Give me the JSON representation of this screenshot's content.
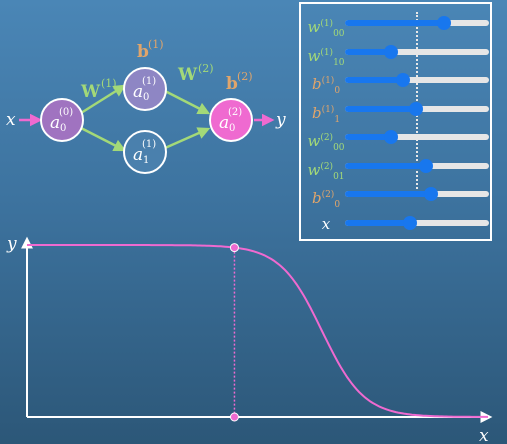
{
  "network": {
    "input_label": "x",
    "output_label": "y",
    "nodes": {
      "a0_0": {
        "base": "a",
        "sub": "0",
        "sup": "(0)"
      },
      "a0_1": {
        "base": "a",
        "sub": "0",
        "sup": "(1)"
      },
      "a1_1": {
        "base": "a",
        "sub": "1",
        "sup": "(1)"
      },
      "a0_2": {
        "base": "a",
        "sub": "0",
        "sup": "(2)"
      }
    },
    "labels": {
      "W1": {
        "base": "W",
        "sup": "(1)"
      },
      "W2": {
        "base": "W",
        "sup": "(2)"
      },
      "b1": {
        "base": "b",
        "sup": "(1)"
      },
      "b2": {
        "base": "b",
        "sup": "(2)"
      }
    },
    "colors": {
      "input_node": "#a073c0",
      "hidden_node_top": "#8e86c4",
      "hidden_node_bottom": "#4a80ad",
      "output_node": "#ef6ad0",
      "arrow_in_out": "#ef6ad0",
      "weight_arrows": "#a3d978",
      "weight_label": "#a3d978",
      "bias_label": "#e0a56b"
    }
  },
  "sliders": [
    {
      "base": "w",
      "sub": "00",
      "sup": "(1)",
      "color": "green",
      "value": 0.69
    },
    {
      "base": "w",
      "sub": "10",
      "sup": "(1)",
      "color": "green",
      "value": 0.32
    },
    {
      "base": "b",
      "sub": "0",
      "sup": "(1)",
      "color": "orange",
      "value": 0.4
    },
    {
      "base": "b",
      "sub": "1",
      "sup": "(1)",
      "color": "orange",
      "value": 0.49
    },
    {
      "base": "w",
      "sub": "00",
      "sup": "(2)",
      "color": "green",
      "value": 0.32
    },
    {
      "base": "w",
      "sub": "01",
      "sup": "(2)",
      "color": "green",
      "value": 0.56
    },
    {
      "base": "b",
      "sub": "0",
      "sup": "(2)",
      "color": "orange",
      "value": 0.6
    },
    {
      "base": "x",
      "sub": "",
      "sup": "",
      "color": "white",
      "value": 0.45
    }
  ],
  "chart_data": {
    "type": "line",
    "xlabel": "x",
    "ylabel": "y",
    "x_marker": 0.45,
    "curve_color": "#ef6ad0",
    "grid": false
  }
}
